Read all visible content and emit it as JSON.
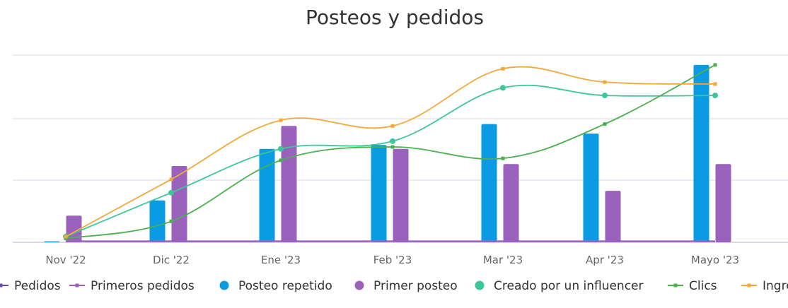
{
  "chart_data": {
    "type": "bar",
    "title": "Posteos y pedidos",
    "categories": [
      "Nov '22",
      "Dic '22",
      "Ene '23",
      "Feb '23",
      "Mar '23",
      "Apr '23",
      "Mayo '23"
    ],
    "y_axis_labels_visible": false,
    "ylim": [
      0,
      100
    ],
    "grid": true,
    "legend_position": "bottom",
    "series": [
      {
        "name": "Posteo repetido",
        "kind": "bar",
        "color": "#0a9be2",
        "values": [
          0.5,
          22,
          49,
          51,
          62,
          57,
          93
        ]
      },
      {
        "name": "Primer posteo",
        "kind": "bar",
        "color": "#9a62bd",
        "values": [
          14,
          40,
          61,
          49,
          41,
          27,
          41
        ]
      },
      {
        "name": "Primeros pedidos",
        "kind": "line",
        "color": "#9a62bd",
        "values": [
          0.5,
          0.5,
          0.5,
          0.5,
          0.5,
          0.5,
          0.5
        ]
      },
      {
        "name": "Creado por un influencer",
        "kind": "line",
        "color": "#3cc69a",
        "values": [
          3,
          26,
          49,
          53,
          81,
          77,
          77
        ]
      },
      {
        "name": "Clics",
        "kind": "line",
        "color": "#4cb050",
        "values": [
          2,
          11,
          43,
          50,
          44,
          62,
          93
        ]
      },
      {
        "name": "Ingre",
        "kind": "line",
        "color": "#f2a93a",
        "values": [
          3,
          33,
          64,
          61,
          91,
          84,
          83
        ]
      }
    ],
    "legend_items": [
      {
        "label": "Pedidos",
        "marker": "line",
        "color": "#6b4aa0"
      },
      {
        "label": "Primeros pedidos",
        "marker": "line",
        "color": "#9a62bd"
      },
      {
        "label": "Posteo repetido",
        "marker": "dot",
        "color": "#0a9be2"
      },
      {
        "label": "Primer posteo",
        "marker": "dot",
        "color": "#9a62bd"
      },
      {
        "label": "Creado por un influencer",
        "marker": "dot",
        "color": "#3cc69a"
      },
      {
        "label": "Clics",
        "marker": "line",
        "color": "#4cb050"
      },
      {
        "label": "Ingre",
        "marker": "line",
        "color": "#f2a93a"
      }
    ]
  }
}
